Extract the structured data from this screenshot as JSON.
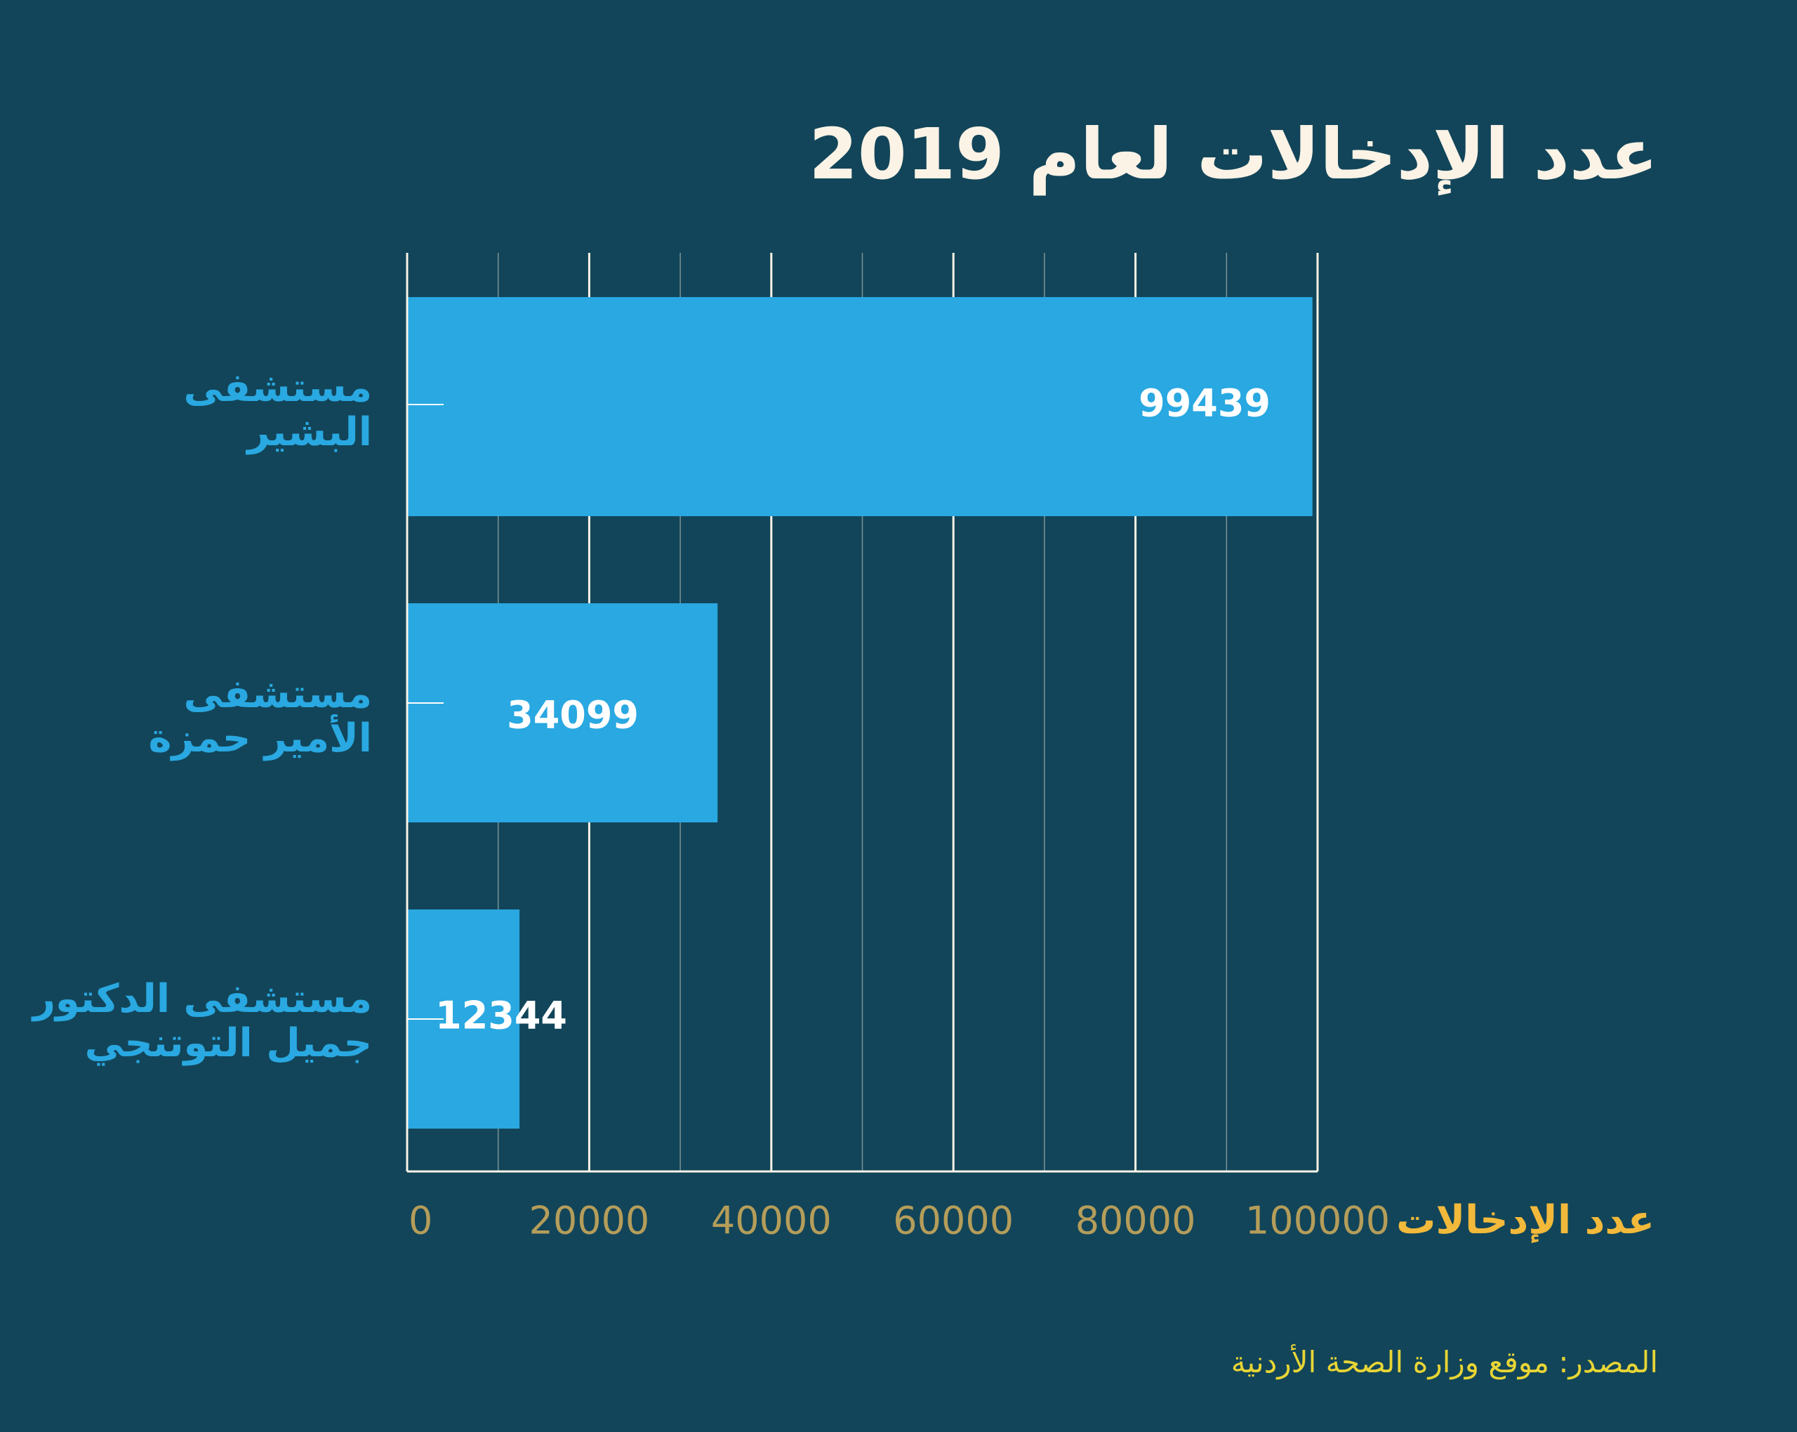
{
  "chart_data": {
    "type": "bar",
    "orientation": "horizontal",
    "title": "عدد الإدخالات لعام 2019",
    "xlabel": "عدد الإدخالات",
    "ylabel": "",
    "categories": [
      "مستشفى البشير",
      "مستشفى الأمير حمزة",
      "مستشفى الدكتور جميل التوتنجي"
    ],
    "category_lines": [
      [
        "مستشفى",
        "البشير"
      ],
      [
        "مستشفى",
        "الأمير حمزة"
      ],
      [
        "مستشفى الدكتور",
        "جميل التوتنجي"
      ]
    ],
    "values": [
      99439,
      34099,
      12344
    ],
    "value_labels": [
      "99439",
      "34099",
      "12344"
    ],
    "xlim": [
      0,
      100000
    ],
    "xticks": [
      0,
      20000,
      40000,
      60000,
      80000,
      100000
    ],
    "xtick_labels": [
      "0",
      "20000",
      "40000",
      "60000",
      "80000",
      "100000"
    ],
    "minor_gridlines": [
      10000,
      30000,
      50000,
      70000,
      90000
    ],
    "grid": true,
    "legend": "none",
    "colors": {
      "background": "#124559",
      "bar": "#29a8e1",
      "title": "#fbf3e6",
      "value_label": "#ffffff",
      "category_label": "#29a8e1",
      "tick_label": "#b59d5a",
      "axis_label": "#f2b93b",
      "source": "#e8d535",
      "grid": "#fbf3e6"
    }
  },
  "source": "المصدر: موقع وزارة الصحة الأردنية"
}
